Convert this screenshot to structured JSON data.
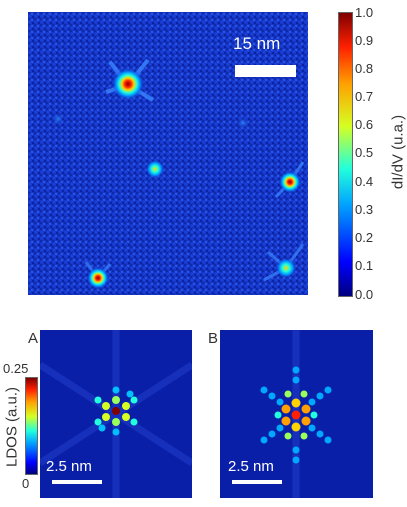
{
  "top_map": {
    "scale_bar_label": "15 nm",
    "colorbar": {
      "label": "dI/dV (u.a.)",
      "ticks": [
        "1.0",
        "0.9",
        "0.8",
        "0.7",
        "0.6",
        "0.5",
        "0.4",
        "0.3",
        "0.2",
        "0.1",
        "0.0"
      ]
    }
  },
  "panel_a": {
    "letter": "A",
    "scale_bar_label": "2.5 nm",
    "colorbar": {
      "label": "LDOS (a.u.)",
      "tick_max": "0.25",
      "tick_min": "0"
    }
  },
  "panel_b": {
    "letter": "B",
    "scale_bar_label": "2.5 nm"
  },
  "colormap": [
    "#00007f",
    "#0000ff",
    "#00a0ff",
    "#22ffdc",
    "#d6ff22",
    "#ffa000",
    "#ff2000",
    "#7f0000"
  ]
}
